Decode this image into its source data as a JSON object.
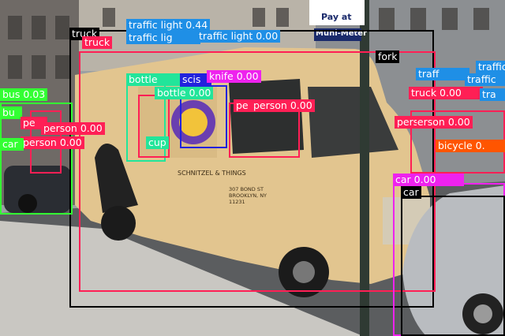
{
  "scene": {
    "description_free": true,
    "signs": {
      "pay_at": "Pay at",
      "muni_meter": "Muni-Meter",
      "truck_brand": "SCHNITZEL & THINGS",
      "truck_address": "307 BOND ST BROOKLYN, NY 11231"
    }
  },
  "colors": {
    "truck": "#e2c58f",
    "person": "#ff1f55",
    "traffic_light": "#1f8fe6",
    "bus": "#33ff33",
    "bottle": "#22e59a",
    "car": "#ee22ee",
    "knife": "#ee22ee",
    "scissors": "#2222dd",
    "fork": "#000000",
    "bicycle": "#ff5500",
    "cup": "#22e59a"
  },
  "detections": [
    {
      "label": "truck",
      "cls": "truck"
    },
    {
      "label": "truck",
      "cls": "person"
    },
    {
      "label": "traffic light 0.44",
      "cls": "traffic_light"
    },
    {
      "label": "traffic lig",
      "cls": "traffic_light"
    },
    {
      "label": "traffic light 0.00",
      "cls": "traffic_light"
    },
    {
      "label": "fork",
      "cls": "fork"
    },
    {
      "label": "traff",
      "cls": "traffic_light"
    },
    {
      "label": "traffic",
      "cls": "traffic_light"
    },
    {
      "label": "traffic",
      "cls": "traffic_light"
    },
    {
      "label": "truck 0.00",
      "cls": "person"
    },
    {
      "label": "tra",
      "cls": "traffic_light"
    },
    {
      "label": "bottle",
      "cls": "bottle"
    },
    {
      "label": "scis",
      "cls": "scissors"
    },
    {
      "label": "knife 0.00",
      "cls": "knife"
    },
    {
      "label": "bottle 0.00",
      "cls": "bottle"
    },
    {
      "label": "pe",
      "cls": "person"
    },
    {
      "label": "person 0.00",
      "cls": "person"
    },
    {
      "label": "person 0.00",
      "cls": "person"
    },
    {
      "label": "bus 0.03",
      "cls": "bus"
    },
    {
      "label": "bu",
      "cls": "bus"
    },
    {
      "label": "pe",
      "cls": "person"
    },
    {
      "label": "person 0.00",
      "cls": "person"
    },
    {
      "label": "person 0.00",
      "cls": "person"
    },
    {
      "label": "car",
      "cls": "bus"
    },
    {
      "label": "cup",
      "cls": "cup"
    },
    {
      "label": "person 0.00",
      "cls": "person"
    },
    {
      "label": "bicycle 0.",
      "cls": "bicycle"
    },
    {
      "label": "car 0.00",
      "cls": "car"
    },
    {
      "label": "car",
      "cls": "fork"
    }
  ]
}
